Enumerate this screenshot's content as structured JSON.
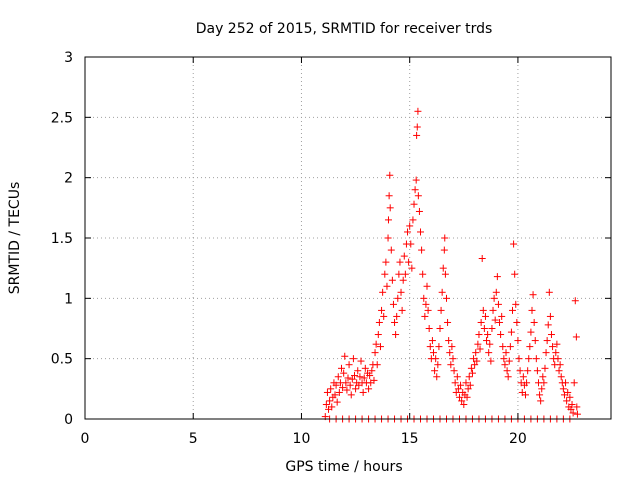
{
  "chart_data": {
    "type": "scatter",
    "title": "Day 252 of 2015, SRMTID for receiver trds",
    "xlabel": "GPS time / hours",
    "ylabel": "SRMTID / TECUs",
    "xlim": [
      0,
      24.3
    ],
    "ylim": [
      0,
      3
    ],
    "grid": true,
    "marker": "+",
    "color": "#ff0000",
    "xticks": [
      {
        "value": 0,
        "label": "0"
      },
      {
        "value": 5,
        "label": "5"
      },
      {
        "value": 10,
        "label": "10"
      },
      {
        "value": 15,
        "label": "15"
      },
      {
        "value": 20,
        "label": "20"
      }
    ],
    "yticks": [
      {
        "value": 0,
        "label": "0"
      },
      {
        "value": 0.5,
        "label": "0.5"
      },
      {
        "value": 1,
        "label": "1"
      },
      {
        "value": 1.5,
        "label": "1.5"
      },
      {
        "value": 2,
        "label": "2"
      },
      {
        "value": 2.5,
        "label": "2.5"
      },
      {
        "value": 3,
        "label": "3"
      }
    ],
    "series": [
      {
        "name": "SRMTID",
        "points": [
          [
            11.1,
            0.02
          ],
          [
            11.15,
            0.12
          ],
          [
            11.2,
            0.22
          ],
          [
            11.25,
            0.08
          ],
          [
            11.3,
            0.15
          ],
          [
            11.35,
            0.25
          ],
          [
            11.4,
            0.1
          ],
          [
            11.45,
            0.18
          ],
          [
            11.5,
            0.3
          ],
          [
            11.55,
            0.2
          ],
          [
            11.6,
            0.28
          ],
          [
            11.65,
            0.14
          ],
          [
            11.7,
            0.35
          ],
          [
            11.75,
            0.22
          ],
          [
            11.8,
            0.3
          ],
          [
            11.85,
            0.42
          ],
          [
            11.9,
            0.26
          ],
          [
            11.95,
            0.38
          ],
          [
            12.0,
            0.52
          ],
          [
            12.05,
            0.3
          ],
          [
            12.1,
            0.24
          ],
          [
            12.15,
            0.34
          ],
          [
            12.2,
            0.45
          ],
          [
            12.25,
            0.28
          ],
          [
            12.3,
            0.2
          ],
          [
            12.35,
            0.33
          ],
          [
            12.4,
            0.5
          ],
          [
            12.45,
            0.36
          ],
          [
            12.5,
            0.25
          ],
          [
            12.55,
            0.3
          ],
          [
            12.6,
            0.4
          ],
          [
            12.65,
            0.28
          ],
          [
            12.7,
            0.35
          ],
          [
            12.75,
            0.48
          ],
          [
            12.8,
            0.3
          ],
          [
            12.85,
            0.22
          ],
          [
            12.9,
            0.34
          ],
          [
            12.95,
            0.42
          ],
          [
            13.0,
            0.3
          ],
          [
            13.05,
            0.38
          ],
          [
            13.1,
            0.25
          ],
          [
            13.15,
            0.36
          ],
          [
            13.2,
            0.3
          ],
          [
            13.25,
            0.4
          ],
          [
            13.3,
            0.45
          ],
          [
            13.35,
            0.32
          ],
          [
            13.4,
            0.55
          ],
          [
            13.45,
            0.62
          ],
          [
            13.5,
            0.45
          ],
          [
            13.55,
            0.7
          ],
          [
            13.6,
            0.8
          ],
          [
            13.65,
            0.6
          ],
          [
            13.7,
            0.9
          ],
          [
            13.75,
            1.05
          ],
          [
            13.8,
            0.85
          ],
          [
            13.85,
            1.2
          ],
          [
            13.9,
            1.3
          ],
          [
            13.95,
            1.1
          ],
          [
            14.0,
            1.5
          ],
          [
            14.02,
            1.65
          ],
          [
            14.05,
            1.85
          ],
          [
            14.08,
            2.02
          ],
          [
            14.1,
            1.75
          ],
          [
            14.15,
            1.4
          ],
          [
            14.2,
            1.15
          ],
          [
            14.25,
            0.95
          ],
          [
            14.3,
            0.8
          ],
          [
            14.35,
            0.7
          ],
          [
            14.4,
            0.85
          ],
          [
            14.45,
            1.0
          ],
          [
            14.5,
            1.2
          ],
          [
            14.55,
            1.3
          ],
          [
            14.6,
            1.05
          ],
          [
            14.65,
            0.9
          ],
          [
            14.7,
            1.15
          ],
          [
            14.75,
            1.35
          ],
          [
            14.8,
            1.2
          ],
          [
            14.85,
            1.45
          ],
          [
            14.9,
            1.55
          ],
          [
            14.95,
            1.3
          ],
          [
            15.0,
            1.6
          ],
          [
            15.05,
            1.45
          ],
          [
            15.1,
            1.25
          ],
          [
            15.15,
            1.65
          ],
          [
            15.2,
            1.78
          ],
          [
            15.25,
            1.9
          ],
          [
            15.3,
            1.98
          ],
          [
            15.32,
            2.35
          ],
          [
            15.35,
            2.42
          ],
          [
            15.38,
            2.55
          ],
          [
            15.4,
            1.85
          ],
          [
            15.45,
            1.72
          ],
          [
            15.5,
            1.55
          ],
          [
            15.55,
            1.4
          ],
          [
            15.6,
            1.2
          ],
          [
            15.65,
            1.0
          ],
          [
            15.7,
            0.85
          ],
          [
            15.75,
            0.95
          ],
          [
            15.8,
            1.1
          ],
          [
            15.85,
            0.9
          ],
          [
            15.9,
            0.75
          ],
          [
            15.95,
            0.6
          ],
          [
            16.0,
            0.5
          ],
          [
            16.05,
            0.65
          ],
          [
            16.1,
            0.55
          ],
          [
            16.15,
            0.4
          ],
          [
            16.2,
            0.5
          ],
          [
            16.25,
            0.35
          ],
          [
            16.3,
            0.45
          ],
          [
            16.35,
            0.6
          ],
          [
            16.4,
            0.75
          ],
          [
            16.45,
            0.9
          ],
          [
            16.5,
            1.05
          ],
          [
            16.55,
            1.25
          ],
          [
            16.6,
            1.4
          ],
          [
            16.62,
            1.5
          ],
          [
            16.65,
            1.2
          ],
          [
            16.7,
            1.0
          ],
          [
            16.75,
            0.8
          ],
          [
            16.8,
            0.65
          ],
          [
            16.85,
            0.55
          ],
          [
            16.9,
            0.45
          ],
          [
            16.95,
            0.6
          ],
          [
            17.0,
            0.5
          ],
          [
            17.05,
            0.4
          ],
          [
            17.1,
            0.3
          ],
          [
            17.15,
            0.22
          ],
          [
            17.2,
            0.35
          ],
          [
            17.25,
            0.25
          ],
          [
            17.3,
            0.18
          ],
          [
            17.35,
            0.28
          ],
          [
            17.4,
            0.15
          ],
          [
            17.45,
            0.22
          ],
          [
            17.5,
            0.12
          ],
          [
            17.55,
            0.2
          ],
          [
            17.6,
            0.3
          ],
          [
            17.65,
            0.18
          ],
          [
            17.7,
            0.25
          ],
          [
            17.75,
            0.35
          ],
          [
            17.8,
            0.28
          ],
          [
            17.85,
            0.42
          ],
          [
            17.9,
            0.38
          ],
          [
            17.95,
            0.5
          ],
          [
            18.0,
            0.45
          ],
          [
            18.05,
            0.55
          ],
          [
            18.1,
            0.48
          ],
          [
            18.15,
            0.62
          ],
          [
            18.2,
            0.7
          ],
          [
            18.25,
            0.58
          ],
          [
            18.3,
            0.8
          ],
          [
            18.35,
            1.33
          ],
          [
            18.4,
            0.9
          ],
          [
            18.45,
            0.75
          ],
          [
            18.5,
            0.85
          ],
          [
            18.55,
            0.65
          ],
          [
            18.6,
            0.7
          ],
          [
            18.65,
            0.55
          ],
          [
            18.7,
            0.62
          ],
          [
            18.75,
            0.48
          ],
          [
            18.8,
            0.75
          ],
          [
            18.85,
            0.9
          ],
          [
            18.9,
            1.0
          ],
          [
            18.95,
            0.82
          ],
          [
            19.0,
            1.05
          ],
          [
            19.05,
            1.18
          ],
          [
            19.1,
            0.95
          ],
          [
            19.15,
            0.8
          ],
          [
            19.2,
            0.7
          ],
          [
            19.25,
            0.85
          ],
          [
            19.3,
            0.6
          ],
          [
            19.35,
            0.5
          ],
          [
            19.4,
            0.45
          ],
          [
            19.45,
            0.55
          ],
          [
            19.5,
            0.4
          ],
          [
            19.55,
            0.35
          ],
          [
            19.6,
            0.48
          ],
          [
            19.65,
            0.6
          ],
          [
            19.7,
            0.72
          ],
          [
            19.75,
            0.9
          ],
          [
            19.8,
            1.45
          ],
          [
            19.85,
            1.2
          ],
          [
            19.9,
            0.95
          ],
          [
            19.95,
            0.8
          ],
          [
            20.0,
            0.65
          ],
          [
            20.05,
            0.5
          ],
          [
            20.1,
            0.4
          ],
          [
            20.15,
            0.3
          ],
          [
            20.2,
            0.22
          ],
          [
            20.25,
            0.35
          ],
          [
            20.3,
            0.28
          ],
          [
            20.35,
            0.2
          ],
          [
            20.4,
            0.3
          ],
          [
            20.45,
            0.4
          ],
          [
            20.5,
            0.5
          ],
          [
            20.55,
            0.6
          ],
          [
            20.6,
            0.72
          ],
          [
            20.65,
            0.9
          ],
          [
            20.7,
            1.03
          ],
          [
            20.75,
            0.8
          ],
          [
            20.8,
            0.65
          ],
          [
            20.85,
            0.5
          ],
          [
            20.9,
            0.4
          ],
          [
            20.95,
            0.3
          ],
          [
            21.0,
            0.2
          ],
          [
            21.05,
            0.15
          ],
          [
            21.1,
            0.25
          ],
          [
            21.15,
            0.35
          ],
          [
            21.2,
            0.3
          ],
          [
            21.25,
            0.42
          ],
          [
            21.3,
            0.55
          ],
          [
            21.35,
            0.65
          ],
          [
            21.4,
            0.78
          ],
          [
            21.45,
            1.05
          ],
          [
            21.5,
            0.85
          ],
          [
            21.55,
            0.7
          ],
          [
            21.6,
            0.6
          ],
          [
            21.65,
            0.5
          ],
          [
            21.7,
            0.45
          ],
          [
            21.75,
            0.55
          ],
          [
            21.8,
            0.62
          ],
          [
            21.85,
            0.5
          ],
          [
            21.9,
            0.4
          ],
          [
            21.95,
            0.45
          ],
          [
            22.0,
            0.35
          ],
          [
            22.05,
            0.3
          ],
          [
            22.1,
            0.25
          ],
          [
            22.15,
            0.2
          ],
          [
            22.2,
            0.3
          ],
          [
            22.25,
            0.15
          ],
          [
            22.3,
            0.22
          ],
          [
            22.35,
            0.1
          ],
          [
            22.4,
            0.18
          ],
          [
            22.45,
            0.08
          ],
          [
            22.5,
            0.12
          ],
          [
            22.55,
            0.05
          ],
          [
            22.6,
            0.3
          ],
          [
            22.65,
            0.98
          ],
          [
            22.7,
            0.68
          ],
          [
            22.72,
            0.1
          ],
          [
            22.75,
            0.04
          ],
          [
            11.3,
            0.0
          ],
          [
            11.6,
            0.0
          ],
          [
            11.9,
            0.0
          ],
          [
            12.2,
            0.0
          ],
          [
            12.5,
            0.0
          ],
          [
            12.8,
            0.0
          ],
          [
            13.1,
            0.0
          ],
          [
            13.4,
            0.0
          ],
          [
            13.7,
            0.0
          ],
          [
            14.0,
            0.0
          ],
          [
            14.3,
            0.0
          ],
          [
            14.6,
            0.0
          ],
          [
            14.9,
            0.0
          ],
          [
            15.2,
            0.0
          ],
          [
            15.5,
            0.0
          ],
          [
            15.8,
            0.0
          ],
          [
            16.1,
            0.0
          ],
          [
            16.4,
            0.0
          ],
          [
            16.7,
            0.0
          ],
          [
            17.0,
            0.0
          ],
          [
            17.3,
            0.0
          ],
          [
            17.6,
            0.0
          ],
          [
            17.9,
            0.0
          ],
          [
            18.2,
            0.0
          ],
          [
            18.5,
            0.0
          ],
          [
            18.8,
            0.0
          ],
          [
            19.1,
            0.0
          ],
          [
            19.4,
            0.0
          ],
          [
            19.7,
            0.0
          ],
          [
            20.0,
            0.0
          ],
          [
            20.3,
            0.0
          ],
          [
            20.6,
            0.0
          ],
          [
            20.9,
            0.0
          ],
          [
            21.2,
            0.0
          ],
          [
            21.5,
            0.0
          ],
          [
            21.8,
            0.0
          ],
          [
            22.1,
            0.0
          ],
          [
            22.4,
            0.0
          ]
        ]
      }
    ]
  }
}
